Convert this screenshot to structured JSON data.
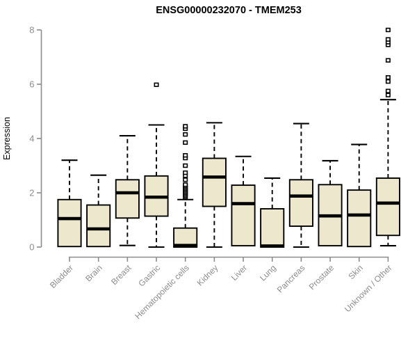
{
  "header": {
    "title": "ENSG00000232070 - TMEM253"
  },
  "chart_data": {
    "type": "boxplot",
    "title": "ENSG00000232070 - TMEM253",
    "xlabel": "",
    "ylabel": "Expression",
    "ylim": [
      0,
      8
    ],
    "yticks": [
      0,
      2,
      4,
      6,
      8
    ],
    "grid": false,
    "legend": "none",
    "categories": [
      "Bladder",
      "Brain",
      "Breast",
      "Gastric",
      "Hematopoietic cells",
      "Kidney",
      "Liver",
      "Lung",
      "Pancreas",
      "Prostate",
      "Skin",
      "Unknown / Other"
    ],
    "series": [
      {
        "name": "Bladder",
        "whisker_low": 0.02,
        "q1": 0.02,
        "median": 1.05,
        "q3": 1.75,
        "whisker_high": 3.2,
        "outliers": []
      },
      {
        "name": "Brain",
        "whisker_low": 0.02,
        "q1": 0.02,
        "median": 0.67,
        "q3": 1.55,
        "whisker_high": 2.65,
        "outliers": []
      },
      {
        "name": "Breast",
        "whisker_low": 0.06,
        "q1": 1.07,
        "median": 2.0,
        "q3": 2.48,
        "whisker_high": 4.1,
        "outliers": []
      },
      {
        "name": "Gastric",
        "whisker_low": 0.0,
        "q1": 1.14,
        "median": 1.84,
        "q3": 2.62,
        "whisker_high": 4.5,
        "outliers": [
          5.98
        ]
      },
      {
        "name": "Hematopoietic cells",
        "whisker_low": 0.0,
        "q1": 0.0,
        "median": 0.06,
        "q3": 0.7,
        "whisker_high": 1.75,
        "outliers": [
          1.85,
          1.9,
          1.95,
          2.0,
          2.05,
          2.1,
          2.15,
          2.2,
          2.25,
          2.3,
          2.48,
          2.63,
          2.74,
          3.0,
          3.28,
          3.38,
          3.85,
          4.15,
          4.36,
          4.45
        ]
      },
      {
        "name": "Kidney",
        "whisker_low": 0.0,
        "q1": 1.5,
        "median": 2.58,
        "q3": 3.27,
        "whisker_high": 4.58,
        "outliers": []
      },
      {
        "name": "Liver",
        "whisker_low": 0.05,
        "q1": 0.05,
        "median": 1.6,
        "q3": 2.28,
        "whisker_high": 3.34,
        "outliers": []
      },
      {
        "name": "Lung",
        "whisker_low": 0.0,
        "q1": 0.0,
        "median": 0.04,
        "q3": 1.41,
        "whisker_high": 2.54,
        "outliers": []
      },
      {
        "name": "Pancreas",
        "whisker_low": 0.0,
        "q1": 0.77,
        "median": 1.88,
        "q3": 2.48,
        "whisker_high": 4.55,
        "outliers": []
      },
      {
        "name": "Prostate",
        "whisker_low": 0.05,
        "q1": 0.05,
        "median": 1.15,
        "q3": 2.3,
        "whisker_high": 3.18,
        "outliers": []
      },
      {
        "name": "Skin",
        "whisker_low": 0.02,
        "q1": 0.02,
        "median": 1.18,
        "q3": 2.1,
        "whisker_high": 3.78,
        "outliers": []
      },
      {
        "name": "Unknown / Other",
        "whisker_low": 0.05,
        "q1": 0.43,
        "median": 1.62,
        "q3": 2.54,
        "whisker_high": 5.43,
        "outliers": [
          5.6,
          5.75,
          6.1,
          6.25,
          6.88,
          7.45,
          7.55,
          7.65,
          8.0
        ]
      }
    ],
    "colors": {
      "background": "#FFFFFF",
      "box_fill": "#EDE8CD",
      "box_stroke": "#000000",
      "median": "#000000",
      "axis": "#8C8C8C",
      "tick_label": "#8C8C8C",
      "title": "#000000"
    }
  }
}
